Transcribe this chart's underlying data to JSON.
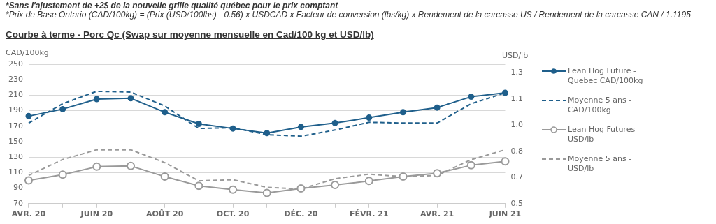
{
  "chart_data": {
    "type": "line",
    "title": "Courbe à terme - Porc Qc (Swap sur moyenne mensuelle en Cad/100 kg et USD/lb)",
    "annotations": [
      "*Sans l'ajustement de +2$ de la nouvelle grille qualité québec pour le prix comptant",
      "*Prix de Base Ontario (CAD/100kg) = (Prix (USD/100lbs) - 0.56) x USDCAD x Facteur de conversion (lbs/kg) x Rendement de la carcasse US / Rendement de la carcasse CAN / 1.1195"
    ],
    "ylabel": "CAD/100kg",
    "y2label": "USD/lb",
    "categories": [
      "AVR. 20",
      null,
      "JUIN 20",
      null,
      "AOÛT 20",
      null,
      "OCT. 20",
      null,
      "DÉC. 20",
      null,
      "FÉVR. 21",
      null,
      "AVR. 21",
      null,
      "JUIN 21"
    ],
    "series": [
      {
        "name": "Lean Hog Future - Quebec CAD/100kg",
        "color": "#1f5f8b",
        "marker": "circle",
        "line_style": "solid",
        "values": [
          183,
          192,
          205,
          206,
          188,
          173,
          167,
          161,
          169,
          174,
          181,
          188,
          194,
          208,
          213
        ]
      },
      {
        "name": "Moyenne 5 ans - CAD/100kg",
        "color": "#1f5f8b",
        "marker": "none",
        "line_style": "dashed",
        "values": [
          174,
          199,
          215,
          214,
          196,
          167,
          168,
          159,
          157,
          165,
          175,
          174,
          174,
          199,
          213
        ]
      },
      {
        "name": "Lean Hog Futures - USD/lb",
        "color": "#9a9a9a",
        "marker": "circle",
        "line_style": "solid",
        "axis": "y2",
        "values": [
          0.633,
          0.666,
          0.712,
          0.716,
          0.655,
          0.602,
          0.58,
          0.561,
          0.587,
          0.607,
          0.63,
          0.655,
          0.674,
          0.72,
          0.742
        ]
      },
      {
        "name": "Moyenne 5 ans - USD/lb",
        "color": "#9a9a9a",
        "marker": "none",
        "line_style": "dashed",
        "axis": "y2",
        "values": [
          0.662,
          0.753,
          0.809,
          0.809,
          0.735,
          0.631,
          0.637,
          0.594,
          0.584,
          0.643,
          0.669,
          0.655,
          0.662,
          0.752,
          0.809
        ]
      }
    ],
    "ylim": [
      70,
      250
    ],
    "yticks": [
      70,
      90,
      110,
      130,
      150,
      170,
      190,
      210,
      230,
      250
    ],
    "y2lim": [
      0.5,
      1.3
    ],
    "y2ticks": [
      0.5,
      {
        "value": 0.65,
        "label": "0.7"
      },
      0.8,
      {
        "value": 0.95,
        "label": "1.0"
      },
      1.1,
      {
        "value": 1.25,
        "label": "1.3"
      }
    ],
    "grid": "y",
    "legend": "right"
  }
}
